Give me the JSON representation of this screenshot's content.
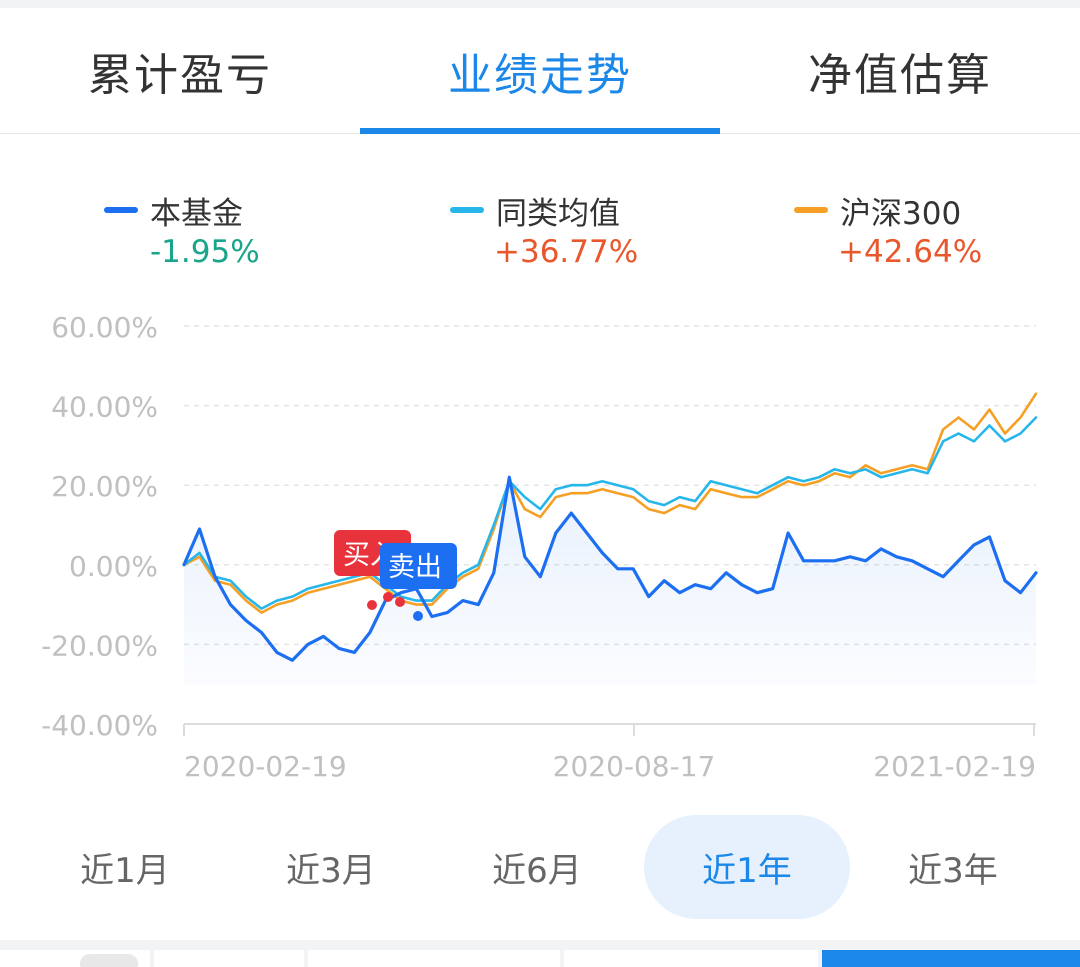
{
  "tabs": [
    {
      "label": "累计盈亏",
      "active": false
    },
    {
      "label": "业绩走势",
      "active": true
    },
    {
      "label": "净值估算",
      "active": false
    }
  ],
  "legend": [
    {
      "name": "本基金",
      "value": "-1.95%",
      "color": "#1d6ff2",
      "value_color": "#18a589"
    },
    {
      "name": "同类均值",
      "value": "+36.77%",
      "color": "#27b6ea",
      "value_color": "#e8582c"
    },
    {
      "name": "沪深300",
      "value": "+42.64%",
      "color": "#f5a024",
      "value_color": "#e8582c"
    }
  ],
  "chart_data": {
    "type": "line",
    "y_ticks": [
      "60.00%",
      "40.00%",
      "20.00%",
      "0.00%",
      "-20.00%",
      "-40.00%"
    ],
    "x_ticks": [
      "2020-02-19",
      "2020-08-17",
      "2021-02-19"
    ],
    "ylim": [
      -40,
      60
    ],
    "grid": true,
    "annotations": {
      "buy_label": "买入",
      "sell_label": "卖出"
    },
    "series": [
      {
        "name": "本基金",
        "color": "#1d6ff2",
        "values": [
          0,
          9,
          -3,
          -10,
          -14,
          -17,
          -22,
          -24,
          -20,
          -18,
          -21,
          -22,
          -17,
          -9,
          -7,
          -6,
          -13,
          -12,
          -9,
          -10,
          -2,
          22,
          2,
          -3,
          8,
          13,
          8,
          3,
          -1,
          -1,
          -8,
          -4,
          -7,
          -5,
          -6,
          -2,
          -5,
          -7,
          -6,
          8,
          1,
          1,
          1,
          2,
          1,
          4,
          2,
          1,
          -1,
          -3,
          1,
          5,
          7,
          -4,
          -7,
          -2
        ]
      },
      {
        "name": "同类均值",
        "color": "#27b6ea",
        "values": [
          0,
          3,
          -3,
          -4,
          -8,
          -11,
          -9,
          -8,
          -6,
          -5,
          -4,
          -3,
          -2,
          -5,
          -8,
          -9,
          -9,
          -5,
          -2,
          0,
          10,
          21,
          17,
          14,
          19,
          20,
          20,
          21,
          20,
          19,
          16,
          15,
          17,
          16,
          21,
          20,
          19,
          18,
          20,
          22,
          21,
          22,
          24,
          23,
          24,
          22,
          23,
          24,
          23,
          31,
          33,
          31,
          35,
          31,
          33,
          37
        ]
      },
      {
        "name": "沪深300",
        "color": "#f5a024",
        "values": [
          0,
          2,
          -4,
          -5,
          -9,
          -12,
          -10,
          -9,
          -7,
          -6,
          -5,
          -4,
          -3,
          -6,
          -9,
          -10,
          -10,
          -6,
          -3,
          -1,
          9,
          21,
          14,
          12,
          17,
          18,
          18,
          19,
          18,
          17,
          14,
          13,
          15,
          14,
          19,
          18,
          17,
          17,
          19,
          21,
          20,
          21,
          23,
          22,
          25,
          23,
          24,
          25,
          24,
          34,
          37,
          34,
          39,
          33,
          37,
          43
        ]
      }
    ]
  },
  "ranges": [
    {
      "label": "近1月",
      "active": false
    },
    {
      "label": "近3月",
      "active": false
    },
    {
      "label": "近6月",
      "active": false
    },
    {
      "label": "近1年",
      "active": true
    },
    {
      "label": "近3年",
      "active": false
    }
  ],
  "colors": {
    "accent": "#1b87e8",
    "buy": "#e8323c",
    "sell": "#1d6ff2"
  }
}
